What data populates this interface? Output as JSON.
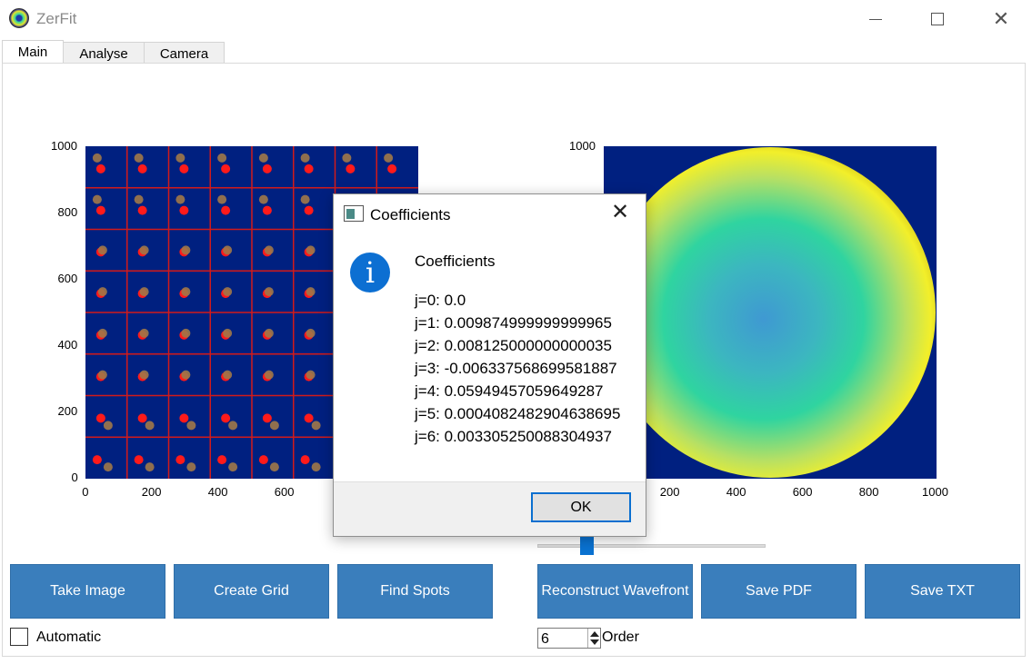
{
  "app": {
    "title": "ZerFit"
  },
  "tabs": [
    {
      "label": "Main"
    },
    {
      "label": "Analyse"
    },
    {
      "label": "Camera"
    }
  ],
  "left_plot": {
    "y_ticks": [
      "1000",
      "800",
      "600",
      "400",
      "200",
      "0"
    ],
    "x_ticks": [
      "0",
      "200",
      "400",
      "600"
    ]
  },
  "right_plot": {
    "y_ticks": [
      "1000"
    ],
    "x_ticks": [
      "200",
      "400",
      "600",
      "800",
      "1000"
    ]
  },
  "buttons": {
    "take_image": "Take Image",
    "create_grid": "Create Grid",
    "find_spots": "Find Spots",
    "reconstruct": "Reconstruct Wavefront",
    "save_pdf": "Save PDF",
    "save_txt": "Save TXT"
  },
  "automatic": {
    "label": "Automatic",
    "checked": false
  },
  "order": {
    "value": "6",
    "label": "Order"
  },
  "dialog": {
    "title": "Coefficients",
    "heading": "Coefficients",
    "lines": [
      "j=0: 0.0",
      "j=1: 0.009874999999999965",
      "j=2: 0.008125000000000035",
      "j=3: -0.006337568699581887",
      "j=4: 0.05949457059649287",
      "j=5: 0.0004082482904638695",
      "j=6: 0.003305250088304937"
    ],
    "ok_label": "OK"
  },
  "colors": {
    "button_bg": "#3a7ebc",
    "plot_bg": "#002080",
    "grid_line": "#d21a1a",
    "spot_red": "#ff1a1a",
    "spot_brown": "#a07848",
    "accent": "#0a72d1"
  }
}
